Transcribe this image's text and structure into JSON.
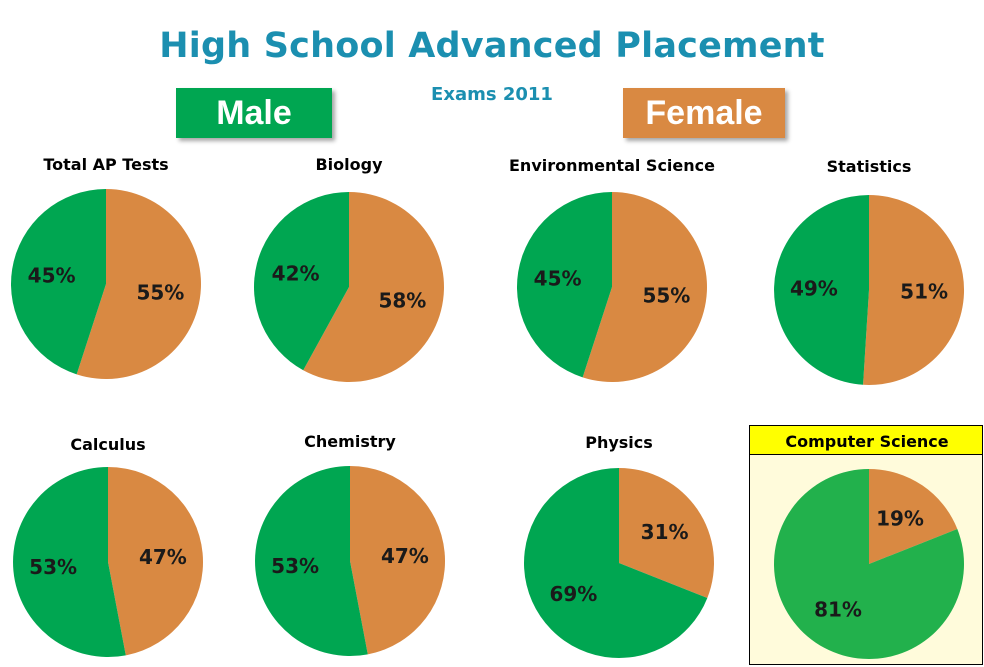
{
  "title": "High School Advanced Placement",
  "subtitle": "Exams 2011",
  "legend": {
    "male_label": "Male",
    "female_label": "Female"
  },
  "colors": {
    "male": "#00a651",
    "female": "#d98942",
    "title": "#1b8fb0",
    "highlight_header": "#ffff00",
    "highlight_panel": "#fffbdb",
    "highlight_male": "#22b14c"
  },
  "chart_data": [
    {
      "type": "pie",
      "title": "Total AP Tests",
      "labels": [
        "Male",
        "Female"
      ],
      "values": [
        45,
        55
      ],
      "value_labels": [
        "45%",
        "55%"
      ]
    },
    {
      "type": "pie",
      "title": "Biology",
      "labels": [
        "Male",
        "Female"
      ],
      "values": [
        42,
        58
      ],
      "value_labels": [
        "42%",
        "58%"
      ]
    },
    {
      "type": "pie",
      "title": "Environmental Science",
      "labels": [
        "Male",
        "Female"
      ],
      "values": [
        45,
        55
      ],
      "value_labels": [
        "45%",
        "55%"
      ]
    },
    {
      "type": "pie",
      "title": "Statistics",
      "labels": [
        "Male",
        "Female"
      ],
      "values": [
        49,
        51
      ],
      "value_labels": [
        "49%",
        "51%"
      ]
    },
    {
      "type": "pie",
      "title": "Calculus",
      "labels": [
        "Male",
        "Female"
      ],
      "values": [
        53,
        47
      ],
      "value_labels": [
        "53%",
        "47%"
      ]
    },
    {
      "type": "pie",
      "title": "Chemistry",
      "labels": [
        "Male",
        "Female"
      ],
      "values": [
        53,
        47
      ],
      "value_labels": [
        "53%",
        "47%"
      ]
    },
    {
      "type": "pie",
      "title": "Physics",
      "labels": [
        "Male",
        "Female"
      ],
      "values": [
        69,
        31
      ],
      "value_labels": [
        "69%",
        "31%"
      ]
    },
    {
      "type": "pie",
      "title": "Computer Science",
      "labels": [
        "Male",
        "Female"
      ],
      "values": [
        81,
        19
      ],
      "value_labels": [
        "81%",
        "19%"
      ],
      "highlighted": true
    }
  ]
}
